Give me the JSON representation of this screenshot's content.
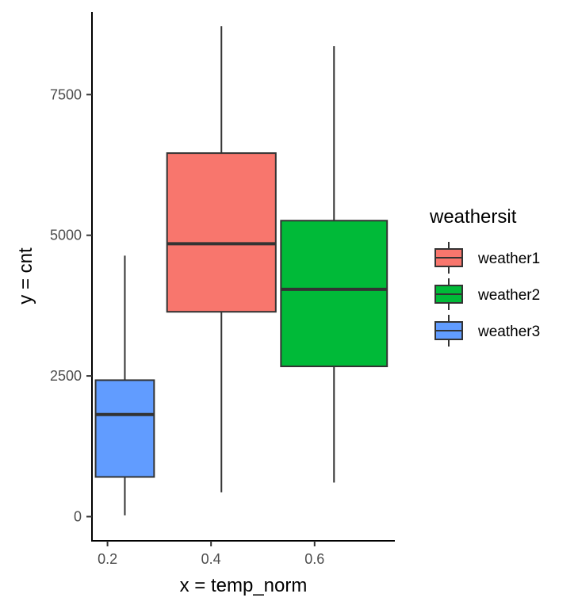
{
  "chart_data": {
    "type": "boxplot",
    "xlabel": "x = temp_norm",
    "ylabel": "y = cnt",
    "xlim": [
      0.17,
      0.755
    ],
    "ylim": [
      -430,
      8970
    ],
    "x_ticks": [
      0.2,
      0.4,
      0.6
    ],
    "y_ticks": [
      0,
      2500,
      5000,
      7500
    ],
    "grid": false,
    "legend": {
      "title": "weathersit",
      "placement": "right",
      "entries": [
        "weather1",
        "weather2",
        "weather3"
      ]
    },
    "series": [
      {
        "name": "weather1",
        "color": "#F8766D",
        "x_range": [
          0.315,
          0.525
        ],
        "min": 431,
        "q1": 3640,
        "median": 4850,
        "q3": 6460,
        "max": 8714
      },
      {
        "name": "weather2",
        "color": "#00BA38",
        "x_range": [
          0.535,
          0.74
        ],
        "min": 605,
        "q1": 2670,
        "median": 4040,
        "q3": 5260,
        "max": 8362
      },
      {
        "name": "weather3",
        "color": "#619CFF",
        "x_range": [
          0.177,
          0.29
        ],
        "min": 22,
        "q1": 705,
        "median": 1815,
        "q3": 2425,
        "max": 4639
      }
    ]
  }
}
